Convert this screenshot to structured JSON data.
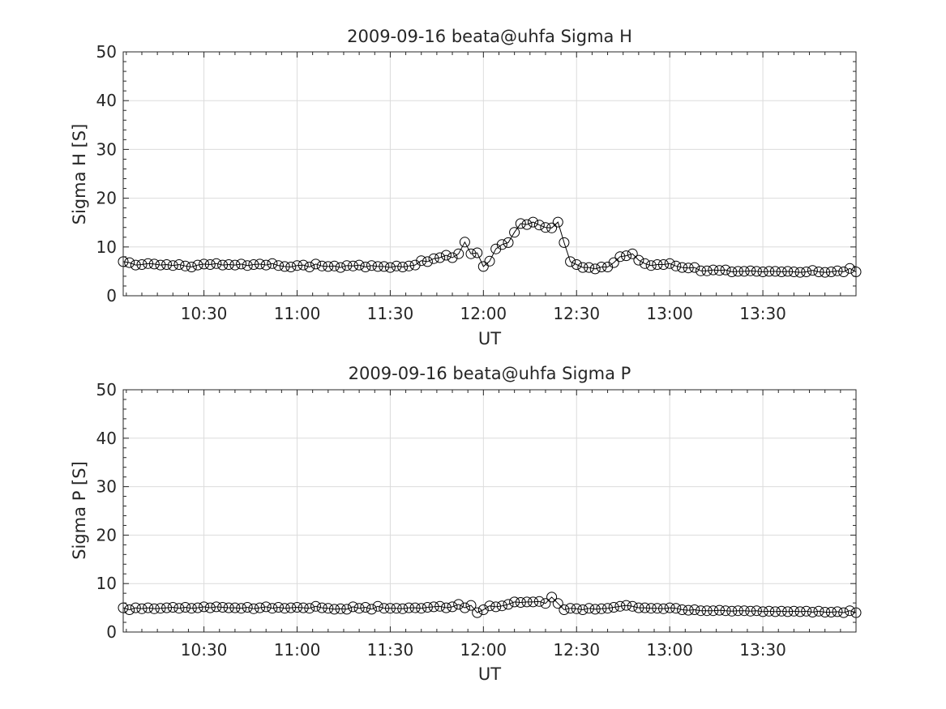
{
  "chart_data": [
    {
      "type": "line",
      "title": "2009-09-16  beata@uhfa Sigma H",
      "xlabel": "UT",
      "ylabel": "Sigma H [S]",
      "ylim": [
        0,
        50
      ],
      "xlim": [
        "10:04",
        "14:00"
      ],
      "y_ticks": [
        "0",
        "10",
        "20",
        "30",
        "40",
        "50"
      ],
      "x_ticks": [
        "10:30",
        "11:00",
        "11:30",
        "12:00",
        "12:30",
        "13:00",
        "13:30"
      ],
      "grid": true,
      "marker": "open-circle",
      "line_color": "#000000",
      "series": [
        {
          "x": [
            "10:04",
            "10:06",
            "10:08",
            "10:10",
            "10:12",
            "10:14",
            "10:16",
            "10:18",
            "10:20",
            "10:22",
            "10:24",
            "10:26",
            "10:28",
            "10:30",
            "10:32",
            "10:34",
            "10:36",
            "10:38",
            "10:40",
            "10:42",
            "10:44",
            "10:46",
            "10:48",
            "10:50",
            "10:52",
            "10:54",
            "10:56",
            "10:58",
            "11:00",
            "11:02",
            "11:04",
            "11:06",
            "11:08",
            "11:10",
            "11:12",
            "11:14",
            "11:16",
            "11:18",
            "11:20",
            "11:22",
            "11:24",
            "11:26",
            "11:28",
            "11:30",
            "11:32",
            "11:34",
            "11:36",
            "11:38",
            "11:40",
            "11:42",
            "11:44",
            "11:46",
            "11:48",
            "11:50",
            "11:52",
            "11:54",
            "11:56",
            "11:58",
            "12:00",
            "12:02",
            "12:04",
            "12:06",
            "12:08",
            "12:10",
            "12:12",
            "12:14",
            "12:16",
            "12:18",
            "12:20",
            "12:22",
            "12:24",
            "12:26",
            "12:28",
            "12:30",
            "12:32",
            "12:34",
            "12:36",
            "12:38",
            "12:40",
            "12:42",
            "12:44",
            "12:46",
            "12:48",
            "12:50",
            "12:52",
            "12:54",
            "12:56",
            "12:58",
            "13:00",
            "13:02",
            "13:04",
            "13:06",
            "13:08",
            "13:10",
            "13:12",
            "13:14",
            "13:16",
            "13:18",
            "13:20",
            "13:22",
            "13:24",
            "13:26",
            "13:28",
            "13:30",
            "13:32",
            "13:34",
            "13:36",
            "13:38",
            "13:40",
            "13:42",
            "13:44",
            "13:46",
            "13:48",
            "13:50",
            "13:52",
            "13:54",
            "13:56",
            "13:58",
            "14:00"
          ],
          "y": [
            7.0,
            6.8,
            6.3,
            6.4,
            6.6,
            6.5,
            6.3,
            6.4,
            6.2,
            6.4,
            6.1,
            5.9,
            6.3,
            6.5,
            6.4,
            6.6,
            6.3,
            6.4,
            6.3,
            6.5,
            6.2,
            6.4,
            6.5,
            6.3,
            6.6,
            6.2,
            6.0,
            5.9,
            6.2,
            6.3,
            5.9,
            6.5,
            6.1,
            6.0,
            6.1,
            5.8,
            6.2,
            6.1,
            6.3,
            5.9,
            6.2,
            6.0,
            6.0,
            5.8,
            6.1,
            5.9,
            6.1,
            6.3,
            7.2,
            7.0,
            7.6,
            7.8,
            8.3,
            7.8,
            8.6,
            11.0,
            8.6,
            8.8,
            6.0,
            7.1,
            9.6,
            10.5,
            10.9,
            13.0,
            14.8,
            14.6,
            15.1,
            14.5,
            14.0,
            13.9,
            15.1,
            10.9,
            7.0,
            6.4,
            5.8,
            5.8,
            5.5,
            5.9,
            5.9,
            6.8,
            8.0,
            8.2,
            8.6,
            7.3,
            6.6,
            6.2,
            6.4,
            6.4,
            6.6,
            6.1,
            5.8,
            5.7,
            5.8,
            5.1,
            5.1,
            5.3,
            5.2,
            5.3,
            4.9,
            5.0,
            5.0,
            5.1,
            5.0,
            4.9,
            5.0,
            5.0,
            4.9,
            5.0,
            4.9,
            4.8,
            4.9,
            5.2,
            4.9,
            4.8,
            4.9,
            5.1,
            4.9,
            5.6,
            4.9
          ]
        }
      ]
    },
    {
      "type": "line",
      "title": "2009-09-16  beata@uhfa Sigma P",
      "xlabel": "UT",
      "ylabel": "Sigma P [S]",
      "ylim": [
        0,
        50
      ],
      "xlim": [
        "10:04",
        "14:00"
      ],
      "y_ticks": [
        "0",
        "10",
        "20",
        "30",
        "40",
        "50"
      ],
      "x_ticks": [
        "10:30",
        "11:00",
        "11:30",
        "12:00",
        "12:30",
        "13:00",
        "13:30"
      ],
      "grid": true,
      "marker": "open-circle",
      "line_color": "#000000",
      "series": [
        {
          "x": [
            "10:04",
            "10:06",
            "10:08",
            "10:10",
            "10:12",
            "10:14",
            "10:16",
            "10:18",
            "10:20",
            "10:22",
            "10:24",
            "10:26",
            "10:28",
            "10:30",
            "10:32",
            "10:34",
            "10:36",
            "10:38",
            "10:40",
            "10:42",
            "10:44",
            "10:46",
            "10:48",
            "10:50",
            "10:52",
            "10:54",
            "10:56",
            "10:58",
            "11:00",
            "11:02",
            "11:04",
            "11:06",
            "11:08",
            "11:10",
            "11:12",
            "11:14",
            "11:16",
            "11:18",
            "11:20",
            "11:22",
            "11:24",
            "11:26",
            "11:28",
            "11:30",
            "11:32",
            "11:34",
            "11:36",
            "11:38",
            "11:40",
            "11:42",
            "11:44",
            "11:46",
            "11:48",
            "11:50",
            "11:52",
            "11:54",
            "11:56",
            "11:58",
            "12:00",
            "12:02",
            "12:04",
            "12:06",
            "12:08",
            "12:10",
            "12:12",
            "12:14",
            "12:16",
            "12:18",
            "12:20",
            "12:22",
            "12:24",
            "12:26",
            "12:28",
            "12:30",
            "12:32",
            "12:34",
            "12:36",
            "12:38",
            "12:40",
            "12:42",
            "12:44",
            "12:46",
            "12:48",
            "12:50",
            "12:52",
            "12:54",
            "12:56",
            "12:58",
            "13:00",
            "13:02",
            "13:04",
            "13:06",
            "13:08",
            "13:10",
            "13:12",
            "13:14",
            "13:16",
            "13:18",
            "13:20",
            "13:22",
            "13:24",
            "13:26",
            "13:28",
            "13:30",
            "13:32",
            "13:34",
            "13:36",
            "13:38",
            "13:40",
            "13:42",
            "13:44",
            "13:46",
            "13:48",
            "13:50",
            "13:52",
            "13:54",
            "13:56",
            "13:58",
            "14:00"
          ],
          "y": [
            5.0,
            4.6,
            5.0,
            4.8,
            5.0,
            4.8,
            4.9,
            5.0,
            5.1,
            4.9,
            5.1,
            4.9,
            5.0,
            5.2,
            5.0,
            5.2,
            5.1,
            5.0,
            5.0,
            4.9,
            5.1,
            4.8,
            5.0,
            5.2,
            4.9,
            5.1,
            4.9,
            5.0,
            5.1,
            5.0,
            4.9,
            5.3,
            5.0,
            4.9,
            4.7,
            4.8,
            4.7,
            5.2,
            4.9,
            5.1,
            4.7,
            5.3,
            4.9,
            4.9,
            4.9,
            4.8,
            5.0,
            5.0,
            4.9,
            5.1,
            5.2,
            5.3,
            5.0,
            5.2,
            5.7,
            5.0,
            5.5,
            4.0,
            4.6,
            5.4,
            5.2,
            5.4,
            5.7,
            6.2,
            6.1,
            6.2,
            6.2,
            6.3,
            5.9,
            7.2,
            5.9,
            4.6,
            4.9,
            4.8,
            4.6,
            4.9,
            4.7,
            4.8,
            4.9,
            5.1,
            5.3,
            5.5,
            5.3,
            5.0,
            5.0,
            4.9,
            4.9,
            4.8,
            5.0,
            4.9,
            4.6,
            4.5,
            4.6,
            4.4,
            4.4,
            4.4,
            4.5,
            4.4,
            4.3,
            4.4,
            4.4,
            4.3,
            4.4,
            4.2,
            4.3,
            4.2,
            4.3,
            4.2,
            4.3,
            4.2,
            4.3,
            4.1,
            4.3,
            4.1,
            4.1,
            4.2,
            4.0,
            4.4,
            4.0
          ]
        }
      ]
    }
  ]
}
